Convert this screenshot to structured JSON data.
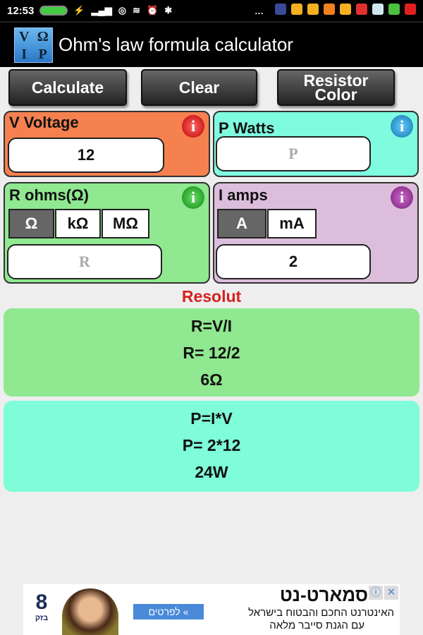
{
  "status_bar": {
    "time": "12:53",
    "notification_colors": [
      "#3a4a9a",
      "#f4b020",
      "#f4b020",
      "#f08020",
      "#f4b020",
      "#e03030",
      "#cfe8f0",
      "#4cc040",
      "#e02020"
    ]
  },
  "app": {
    "title": "Ohm's law formula calculator",
    "logo_letters": [
      "V",
      "Ω",
      "I",
      "P"
    ]
  },
  "toolbar": {
    "calculate": "Calculate",
    "clear": "Clear",
    "resistor_color": "Resistor Color"
  },
  "voltage": {
    "label": "V Voltage",
    "value": "12",
    "color": "#f4814f",
    "info": "i"
  },
  "watts": {
    "label": "P Watts",
    "placeholder": "P",
    "value": "",
    "color": "#7ffce0",
    "info": "i"
  },
  "ohms": {
    "label": "R ohms(Ω)",
    "units": [
      "Ω",
      "kΩ",
      "MΩ"
    ],
    "selected_unit": "Ω",
    "placeholder": "R",
    "value": "",
    "color": "#90e890",
    "info": "i"
  },
  "amps": {
    "label": "I amps",
    "units": [
      "A",
      "mA"
    ],
    "selected_unit": "A",
    "value": "2",
    "color": "#dcbedc",
    "info": "i"
  },
  "result": {
    "heading": "Resolut",
    "heading_color": "#d42020",
    "resistance": {
      "formula": "R=V/I",
      "substitution": "R= 12/2",
      "answer": "6Ω"
    },
    "power": {
      "formula": "P=I*V",
      "substitution": "P= 2*12",
      "answer": "24W"
    }
  },
  "ad": {
    "brand": "בזק",
    "headline": "סמארט-נט",
    "line1": "האינטרנט החכם והבטוח בישראל",
    "line2": "עם הגנת סייבר מלאה",
    "cta": "לפרטים «"
  }
}
